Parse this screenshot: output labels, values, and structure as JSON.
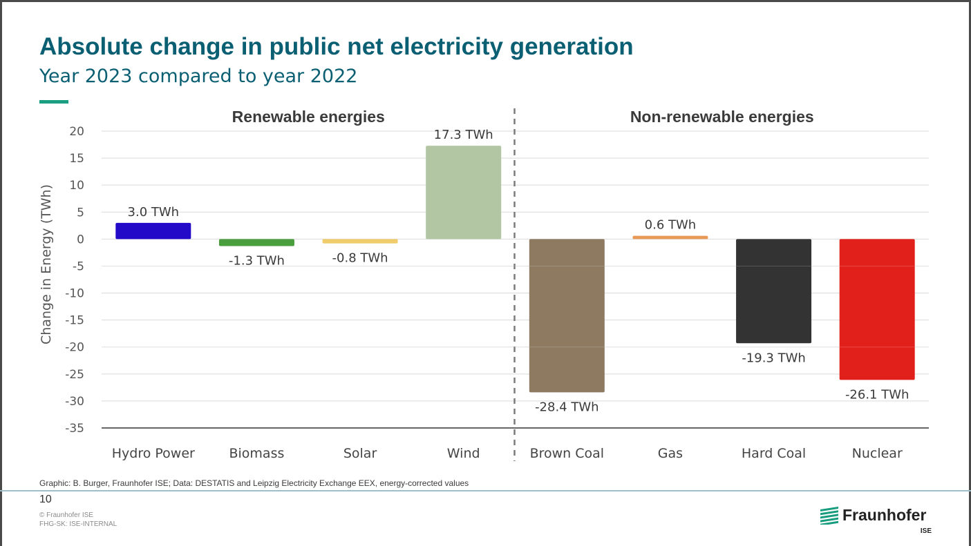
{
  "title": "Absolute change in public net electricity generation",
  "subtitle": "Year 2023 compared to year 2022",
  "colors": {
    "title": "#0b5f73",
    "accent": "#1a9f82",
    "footer_line": "#9fbfc8",
    "grid": "#d9d9d9",
    "axis": "#333333"
  },
  "chart_data": {
    "type": "bar",
    "ylabel": "Change in Energy (TWh)",
    "ylim": [
      -35,
      20
    ],
    "yticks": [
      20,
      15,
      10,
      5,
      0,
      -5,
      -10,
      -15,
      -20,
      -25,
      -30,
      -35
    ],
    "grid": true,
    "groups": [
      {
        "name": "Renewable energies",
        "categories": [
          "Hydro Power",
          "Biomass",
          "Solar",
          "Wind"
        ]
      },
      {
        "name": "Non-renewable energies",
        "categories": [
          "Brown Coal",
          "Gas",
          "Hard Coal",
          "Nuclear"
        ]
      }
    ],
    "categories": [
      "Hydro Power",
      "Biomass",
      "Solar",
      "Wind",
      "Brown Coal",
      "Gas",
      "Hard Coal",
      "Nuclear"
    ],
    "values": [
      3.0,
      -1.3,
      -0.8,
      17.3,
      -28.4,
      0.6,
      -19.3,
      -26.1
    ],
    "data_labels": [
      "3.0 TWh",
      "-1.3 TWh",
      "-0.8 TWh",
      "17.3 TWh",
      "-28.4 TWh",
      "0.6 TWh",
      "-19.3 TWh",
      "-26.1 TWh"
    ],
    "bar_colors": [
      "#2309c8",
      "#4a9e3e",
      "#f0cd6a",
      "#b3c6a4",
      "#8d7a61",
      "#e89956",
      "#333333",
      "#e2201b"
    ]
  },
  "footer": {
    "source": "Graphic: B. Burger, Fraunhofer ISE; Data: DESTATIS and Leipzig Electricity Exchange EEX, energy-corrected values",
    "page_number": "10",
    "copyright": "© Fraunhofer ISE",
    "classification": "FHG-SK: ISE-INTERNAL",
    "logo_text": "Fraunhofer",
    "logo_sub": "ISE",
    "logo_color": "#179c7d"
  }
}
